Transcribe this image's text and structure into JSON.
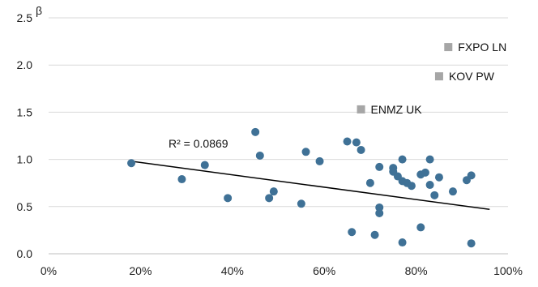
{
  "chart_data": {
    "type": "scatter",
    "title": "",
    "ylabel": "β",
    "xlabel": "",
    "xlim": [
      0,
      1
    ],
    "ylim": [
      0,
      2.5
    ],
    "x_ticks": [
      0,
      0.2,
      0.4,
      0.6,
      0.8,
      1.0
    ],
    "x_tick_labels": [
      "0%",
      "20%",
      "40%",
      "60%",
      "80%",
      "100%"
    ],
    "y_ticks": [
      0,
      0.5,
      1.0,
      1.5,
      2.0,
      2.5
    ],
    "y_tick_labels": [
      "0.0",
      "0.5",
      "1.0",
      "1.5",
      "2.0",
      "2.5"
    ],
    "grid": "horizontal",
    "colors": {
      "points": "#3f7196",
      "highlight": "#a6a6a6",
      "grid": "#d9d9d9",
      "trendline": "#000000"
    },
    "trendline": {
      "x": [
        0.18,
        0.96
      ],
      "y": [
        0.98,
        0.47
      ],
      "label": "R² = 0.0869"
    },
    "points": [
      {
        "x": 0.18,
        "y": 0.96
      },
      {
        "x": 0.29,
        "y": 0.79
      },
      {
        "x": 0.34,
        "y": 0.94
      },
      {
        "x": 0.39,
        "y": 0.59
      },
      {
        "x": 0.45,
        "y": 1.29
      },
      {
        "x": 0.46,
        "y": 1.04
      },
      {
        "x": 0.48,
        "y": 0.59
      },
      {
        "x": 0.49,
        "y": 0.66
      },
      {
        "x": 0.55,
        "y": 0.53
      },
      {
        "x": 0.56,
        "y": 1.08
      },
      {
        "x": 0.59,
        "y": 0.98
      },
      {
        "x": 0.65,
        "y": 1.19
      },
      {
        "x": 0.66,
        "y": 0.23
      },
      {
        "x": 0.67,
        "y": 1.18
      },
      {
        "x": 0.68,
        "y": 1.1
      },
      {
        "x": 0.7,
        "y": 0.75
      },
      {
        "x": 0.71,
        "y": 0.2
      },
      {
        "x": 0.72,
        "y": 0.92
      },
      {
        "x": 0.72,
        "y": 0.49
      },
      {
        "x": 0.72,
        "y": 0.43
      },
      {
        "x": 0.75,
        "y": 0.91
      },
      {
        "x": 0.75,
        "y": 0.87
      },
      {
        "x": 0.76,
        "y": 0.82
      },
      {
        "x": 0.77,
        "y": 1.0
      },
      {
        "x": 0.77,
        "y": 0.77
      },
      {
        "x": 0.77,
        "y": 0.12
      },
      {
        "x": 0.78,
        "y": 0.75
      },
      {
        "x": 0.79,
        "y": 0.72
      },
      {
        "x": 0.81,
        "y": 0.84
      },
      {
        "x": 0.81,
        "y": 0.28
      },
      {
        "x": 0.82,
        "y": 0.86
      },
      {
        "x": 0.83,
        "y": 1.0
      },
      {
        "x": 0.83,
        "y": 0.73
      },
      {
        "x": 0.84,
        "y": 0.62
      },
      {
        "x": 0.85,
        "y": 0.81
      },
      {
        "x": 0.88,
        "y": 0.66
      },
      {
        "x": 0.91,
        "y": 0.78
      },
      {
        "x": 0.92,
        "y": 0.83
      },
      {
        "x": 0.92,
        "y": 0.11
      }
    ],
    "labeled_points": [
      {
        "x": 0.87,
        "y": 2.19,
        "label": "FXPO LN"
      },
      {
        "x": 0.85,
        "y": 1.88,
        "label": "KOV PW"
      },
      {
        "x": 0.68,
        "y": 1.53,
        "label": "ENMZ UK"
      }
    ]
  }
}
